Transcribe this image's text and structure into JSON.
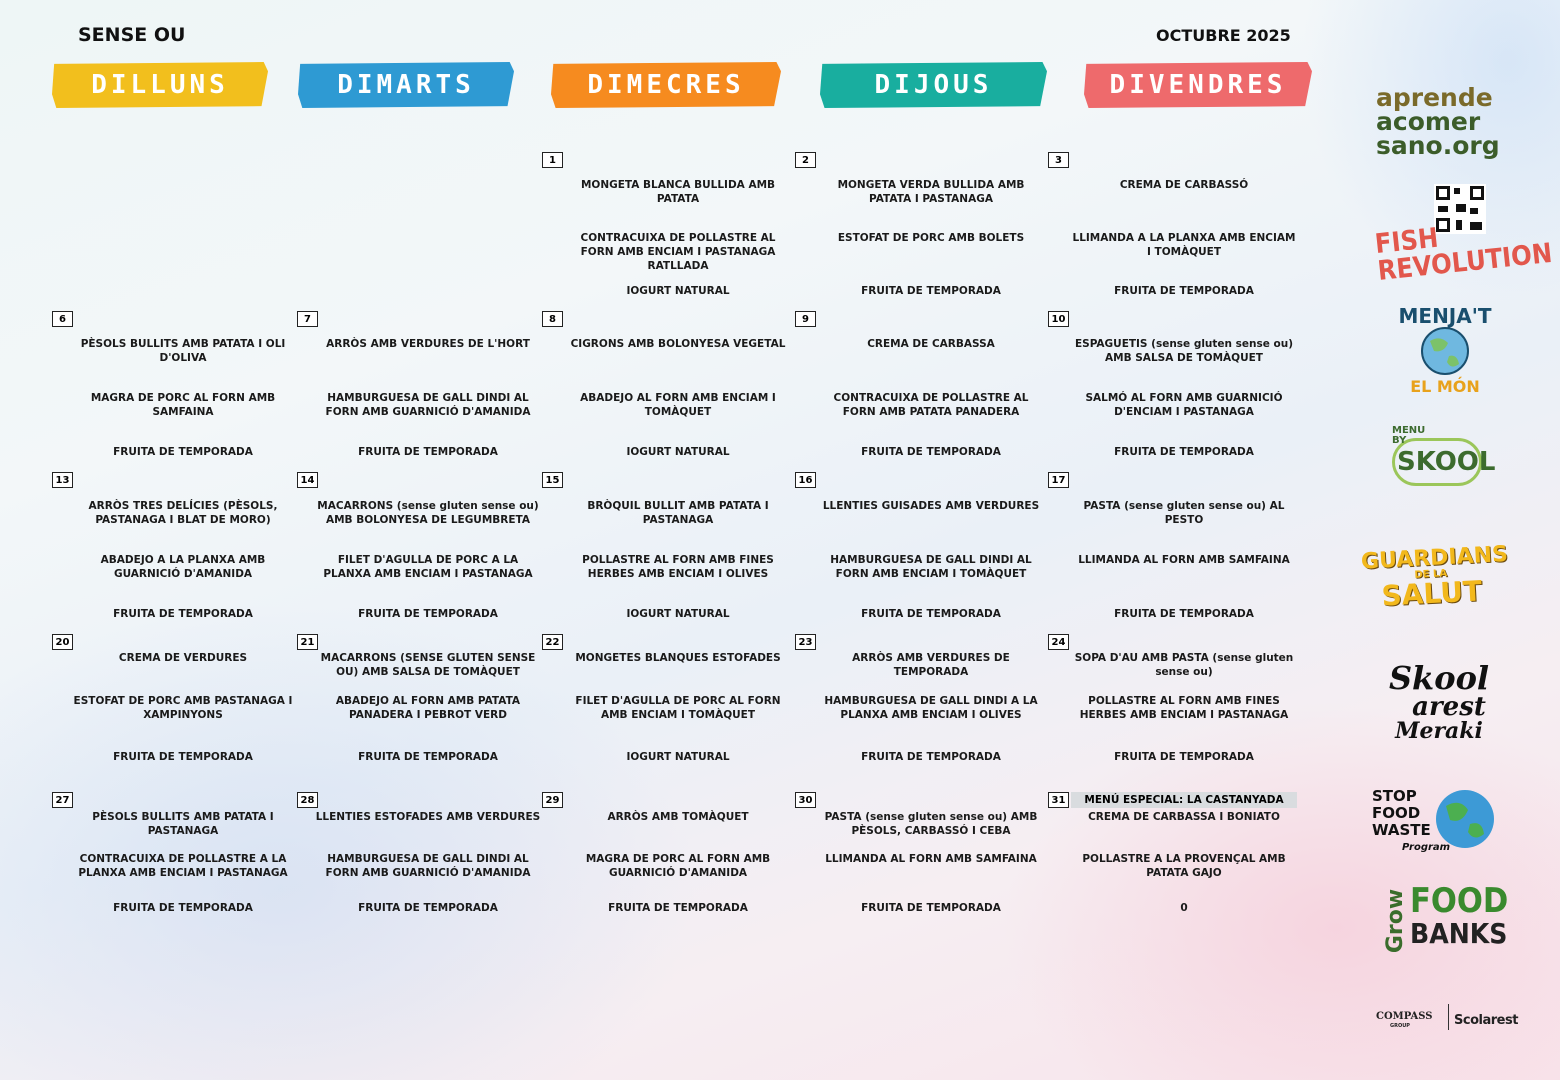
{
  "header": {
    "title": "SENSE OU",
    "month": "OCTUBRE 2025"
  },
  "days": [
    "DILLUNS",
    "DIMARTS",
    "DIMECRES",
    "DIJOUS",
    "DIVENDRES"
  ],
  "weeks": [
    [
      null,
      null,
      {
        "day": "1",
        "dishes": [
          "MONGETA BLANCA BULLIDA AMB PATATA",
          "CONTRACUIXA DE POLLASTRE AL FORN AMB ENCIAM I PASTANAGA RATLLADA",
          "IOGURT NATURAL"
        ]
      },
      {
        "day": "2",
        "dishes": [
          "MONGETA VERDA BULLIDA AMB PATATA I PASTANAGA",
          "ESTOFAT DE PORC AMB BOLETS",
          "FRUITA DE TEMPORADA"
        ]
      },
      {
        "day": "3",
        "dishes": [
          "CREMA DE CARBASSÓ",
          "LLIMANDA A LA PLANXA AMB ENCIAM I TOMÀQUET",
          "FRUITA DE TEMPORADA"
        ]
      }
    ],
    [
      {
        "day": "6",
        "dishes": [
          "PÈSOLS BULLITS AMB PATATA I OLI D'OLIVA",
          "MAGRA DE PORC AL FORN AMB SAMFAINA",
          "FRUITA DE TEMPORADA"
        ]
      },
      {
        "day": "7",
        "dishes": [
          "ARRÒS AMB VERDURES DE L'HORT",
          "HAMBURGUESA DE GALL DINDI AL FORN AMB GUARNICIÓ D'AMANIDA",
          "FRUITA DE TEMPORADA"
        ]
      },
      {
        "day": "8",
        "dishes": [
          "CIGRONS AMB BOLONYESA VEGETAL",
          "ABADEJO AL FORN AMB ENCIAM I TOMÀQUET",
          "IOGURT NATURAL"
        ]
      },
      {
        "day": "9",
        "dishes": [
          "CREMA DE CARBASSA",
          "CONTRACUIXA DE POLLASTRE AL FORN AMB PATATA PANADERA",
          "FRUITA DE TEMPORADA"
        ]
      },
      {
        "day": "10",
        "dishes": [
          "ESPAGUETIS (sense gluten sense ou) AMB SALSA DE TOMÀQUET",
          "SALMÓ AL FORN AMB GUARNICIÓ D'ENCIAM I PASTANAGA",
          "FRUITA DE TEMPORADA"
        ]
      }
    ],
    [
      {
        "day": "13",
        "dishes": [
          "ARRÒS TRES DELÍCIES (PÈSOLS, PASTANAGA I BLAT DE MORO)",
          "ABADEJO A LA PLANXA AMB GUARNICIÓ D'AMANIDA",
          "FRUITA DE TEMPORADA"
        ]
      },
      {
        "day": "14",
        "dishes": [
          "MACARRONS (sense gluten sense ou) AMB BOLONYESA DE LEGUMBRETA",
          "FILET D'AGULLA DE PORC A LA PLANXA AMB ENCIAM I PASTANAGA",
          "FRUITA DE TEMPORADA"
        ]
      },
      {
        "day": "15",
        "dishes": [
          "BRÒQUIL BULLIT AMB PATATA I PASTANAGA",
          "POLLASTRE AL FORN AMB FINES HERBES AMB ENCIAM I OLIVES",
          "IOGURT NATURAL"
        ]
      },
      {
        "day": "16",
        "dishes": [
          "LLENTIES GUISADES AMB VERDURES",
          "HAMBURGUESA DE GALL DINDI AL FORN AMB ENCIAM I TOMÀQUET",
          "FRUITA DE TEMPORADA"
        ]
      },
      {
        "day": "17",
        "dishes": [
          "PASTA (sense gluten sense ou) AL PESTO",
          "LLIMANDA AL FORN AMB SAMFAINA",
          "FRUITA DE TEMPORADA"
        ]
      }
    ],
    [
      {
        "day": "20",
        "dishes": [
          "CREMA DE VERDURES",
          "ESTOFAT DE PORC AMB PASTANAGA I XAMPINYONS",
          "FRUITA DE TEMPORADA"
        ]
      },
      {
        "day": "21",
        "dishes": [
          "MACARRONS (SENSE GLUTEN SENSE OU) AMB SALSA DE TOMÀQUET",
          "ABADEJO AL FORN AMB PATATA PANADERA I PEBROT VERD",
          "FRUITA DE TEMPORADA"
        ]
      },
      {
        "day": "22",
        "dishes": [
          "MONGETES BLANQUES ESTOFADES",
          "FILET D'AGULLA DE PORC AL FORN AMB ENCIAM I TOMÀQUET",
          "IOGURT NATURAL"
        ]
      },
      {
        "day": "23",
        "dishes": [
          "ARRÒS AMB VERDURES DE TEMPORADA",
          "HAMBURGUESA DE GALL DINDI A LA PLANXA AMB ENCIAM I OLIVES",
          "FRUITA DE TEMPORADA"
        ]
      },
      {
        "day": "24",
        "dishes": [
          "SOPA D'AU AMB PASTA (sense gluten sense ou)",
          "POLLASTRE AL FORN AMB FINES HERBES AMB ENCIAM I PASTANAGA",
          "FRUITA DE TEMPORADA"
        ]
      }
    ],
    [
      {
        "day": "27",
        "dishes": [
          "PÈSOLS BULLITS AMB PATATA I PASTANAGA",
          "CONTRACUIXA DE POLLASTRE A LA PLANXA AMB ENCIAM I PASTANAGA",
          "FRUITA DE TEMPORADA"
        ]
      },
      {
        "day": "28",
        "dishes": [
          "LLENTIES ESTOFADES AMB VERDURES",
          "HAMBURGUESA DE GALL DINDI AL FORN AMB GUARNICIÓ D'AMANIDA",
          "FRUITA DE TEMPORADA"
        ]
      },
      {
        "day": "29",
        "dishes": [
          "ARRÒS AMB TOMÀQUET",
          "MAGRA DE PORC AL FORN AMB GUARNICIÓ D'AMANIDA",
          "FRUITA DE TEMPORADA"
        ]
      },
      {
        "day": "30",
        "dishes": [
          "PASTA (sense gluten sense ou) AMB PÈSOLS, CARBASSÓ I CEBA",
          "LLIMANDA AL FORN AMB SAMFAINA",
          "FRUITA DE TEMPORADA"
        ]
      },
      {
        "day": "31",
        "special": "MENÚ ESPECIAL: LA CASTANYADA",
        "dishes": [
          "CREMA DE CARBASSA I BONIATO",
          "POLLASTRE A LA PROVENÇAL AMB PATATA GAJO",
          "0"
        ]
      }
    ]
  ],
  "logos": {
    "aprende": [
      "aprende",
      "acomer",
      "sano.org"
    ],
    "fish": [
      "FISH",
      "REVOLUTION"
    ],
    "menjat": [
      "MENJA'T",
      "EL MÓN"
    ],
    "skool": [
      "MENU",
      "BY",
      "SKOOL"
    ],
    "guardians": [
      "GUARDIANS",
      "DE LA",
      "SALUT"
    ],
    "meraki": [
      "Skool",
      "arest",
      "Meraki"
    ],
    "stop": [
      "STOP",
      "FOOD",
      "WASTE",
      "Program"
    ],
    "grow": [
      "Grow",
      "FOOD",
      "BANKS"
    ],
    "footer": [
      "COMPASS",
      "GROUP",
      "Scolarest"
    ]
  }
}
